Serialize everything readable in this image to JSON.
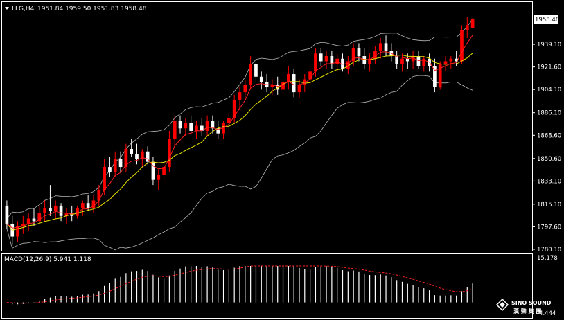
{
  "colors": {
    "background": "#000000",
    "frame": "#ffffff",
    "bull_body": "#ff0000",
    "bear_body": "#ffffff",
    "ma_fast": "#ff2222",
    "ma_slow": "#e8e400",
    "bollinger": "#b8b8b8",
    "histogram": "#ffffff",
    "signal": "#ff2222",
    "price_box_bg": "#ffffff",
    "price_box_text": "#000000"
  },
  "header": {
    "symbol": "LLG,H4",
    "ohlc": "1951.84 1959.50 1951.83 1958.48"
  },
  "macd_header": {
    "label": "MACD(12,26,9) 5.941 1.118"
  },
  "logo": {
    "line1": "SINO SOUND",
    "line2": "漢 聲 集 團"
  },
  "chart_data": [
    {
      "type": "candlestick",
      "series_name": "LLG,H4",
      "ylim": [
        1780.1,
        1958.48
      ],
      "yticks": [
        "1958.48",
        "1939.10",
        "1921.60",
        "1904.10",
        "1886.10",
        "1868.60",
        "1850.60",
        "1833.10",
        "1815.10",
        "1797.60",
        "1780.10"
      ],
      "current_price": "1958.48",
      "ohlc": [
        [
          1814.0,
          1818.0,
          1796.0,
          1800.0
        ],
        [
          1800.0,
          1806.0,
          1784.0,
          1790.0
        ],
        [
          1790.0,
          1802.0,
          1786.0,
          1798.0
        ],
        [
          1798.0,
          1806.0,
          1792.0,
          1800.0
        ],
        [
          1800.0,
          1808.0,
          1794.0,
          1804.0
        ],
        [
          1804.0,
          1812.0,
          1798.0,
          1802.0
        ],
        [
          1802.0,
          1814.0,
          1800.0,
          1808.0
        ],
        [
          1808.0,
          1818.0,
          1802.0,
          1812.0
        ],
        [
          1812.0,
          1830.0,
          1806.0,
          1810.0
        ],
        [
          1810.0,
          1818.0,
          1804.0,
          1814.0
        ],
        [
          1814.0,
          1816.0,
          1802.0,
          1806.0
        ],
        [
          1806.0,
          1812.0,
          1800.0,
          1808.0
        ],
        [
          1808.0,
          1814.0,
          1802.0,
          1806.0
        ],
        [
          1806.0,
          1814.0,
          1804.0,
          1812.0
        ],
        [
          1812.0,
          1818.0,
          1806.0,
          1816.0
        ],
        [
          1816.0,
          1822.0,
          1810.0,
          1812.0
        ],
        [
          1812.0,
          1822.0,
          1808.0,
          1818.0
        ],
        [
          1818.0,
          1830.0,
          1814.0,
          1826.0
        ],
        [
          1826.0,
          1850.0,
          1822.0,
          1844.0
        ],
        [
          1844.0,
          1852.0,
          1836.0,
          1840.0
        ],
        [
          1840.0,
          1856.0,
          1836.0,
          1850.0
        ],
        [
          1850.0,
          1856.0,
          1840.0,
          1844.0
        ],
        [
          1844.0,
          1862.0,
          1840.0,
          1858.0
        ],
        [
          1858.0,
          1866.0,
          1852.0,
          1854.0
        ],
        [
          1854.0,
          1862.0,
          1846.0,
          1850.0
        ],
        [
          1850.0,
          1858.0,
          1844.0,
          1856.0
        ],
        [
          1856.0,
          1860.0,
          1846.0,
          1848.0
        ],
        [
          1848.0,
          1852.0,
          1830.0,
          1834.0
        ],
        [
          1834.0,
          1842.0,
          1826.0,
          1838.0
        ],
        [
          1838.0,
          1848.0,
          1832.0,
          1844.0
        ],
        [
          1844.0,
          1872.0,
          1840.0,
          1866.0
        ],
        [
          1866.0,
          1884.0,
          1860.0,
          1880.0
        ],
        [
          1880.0,
          1884.0,
          1870.0,
          1874.0
        ],
        [
          1874.0,
          1882.0,
          1868.0,
          1878.0
        ],
        [
          1878.0,
          1884.0,
          1870.0,
          1872.0
        ],
        [
          1872.0,
          1880.0,
          1866.0,
          1876.0
        ],
        [
          1876.0,
          1882.0,
          1868.0,
          1872.0
        ],
        [
          1872.0,
          1884.0,
          1868.0,
          1880.0
        ],
        [
          1880.0,
          1884.0,
          1870.0,
          1874.0
        ],
        [
          1874.0,
          1880.0,
          1866.0,
          1870.0
        ],
        [
          1870.0,
          1880.0,
          1866.0,
          1878.0
        ],
        [
          1878.0,
          1886.0,
          1872.0,
          1882.0
        ],
        [
          1882.0,
          1900.0,
          1878.0,
          1896.0
        ],
        [
          1896.0,
          1906.0,
          1888.0,
          1902.0
        ],
        [
          1902.0,
          1912.0,
          1896.0,
          1908.0
        ],
        [
          1908.0,
          1930.0,
          1904.0,
          1924.0
        ],
        [
          1924.0,
          1928.0,
          1910.0,
          1914.0
        ],
        [
          1914.0,
          1918.0,
          1904.0,
          1910.0
        ],
        [
          1910.0,
          1916.0,
          1902.0,
          1906.0
        ],
        [
          1906.0,
          1912.0,
          1900.0,
          1908.0
        ],
        [
          1908.0,
          1914.0,
          1900.0,
          1904.0
        ],
        [
          1904.0,
          1914.0,
          1898.0,
          1910.0
        ],
        [
          1910.0,
          1922.0,
          1904.0,
          1916.0
        ],
        [
          1916.0,
          1920.0,
          1898.0,
          1902.0
        ],
        [
          1902.0,
          1912.0,
          1898.0,
          1908.0
        ],
        [
          1908.0,
          1916.0,
          1902.0,
          1912.0
        ],
        [
          1912.0,
          1922.0,
          1908.0,
          1918.0
        ],
        [
          1918.0,
          1936.0,
          1914.0,
          1932.0
        ],
        [
          1932.0,
          1936.0,
          1922.0,
          1926.0
        ],
        [
          1926.0,
          1934.0,
          1920.0,
          1930.0
        ],
        [
          1930.0,
          1934.0,
          1920.0,
          1924.0
        ],
        [
          1924.0,
          1932.0,
          1918.0,
          1928.0
        ],
        [
          1928.0,
          1932.0,
          1918.0,
          1920.0
        ],
        [
          1920.0,
          1930.0,
          1916.0,
          1926.0
        ],
        [
          1926.0,
          1940.0,
          1922.0,
          1936.0
        ],
        [
          1936.0,
          1940.0,
          1926.0,
          1930.0
        ],
        [
          1930.0,
          1936.0,
          1920.0,
          1924.0
        ],
        [
          1924.0,
          1932.0,
          1918.0,
          1928.0
        ],
        [
          1928.0,
          1938.0,
          1924.0,
          1934.0
        ],
        [
          1934.0,
          1944.0,
          1928.0,
          1940.0
        ],
        [
          1940.0,
          1946.0,
          1930.0,
          1934.0
        ],
        [
          1934.0,
          1940.0,
          1926.0,
          1930.0
        ],
        [
          1930.0,
          1934.0,
          1920.0,
          1924.0
        ],
        [
          1924.0,
          1932.0,
          1918.0,
          1928.0
        ],
        [
          1928.0,
          1932.0,
          1920.0,
          1926.0
        ],
        [
          1926.0,
          1934.0,
          1920.0,
          1930.0
        ],
        [
          1930.0,
          1934.0,
          1920.0,
          1922.0
        ],
        [
          1922.0,
          1930.0,
          1918.0,
          1928.0
        ],
        [
          1928.0,
          1932.0,
          1918.0,
          1922.0
        ],
        [
          1922.0,
          1928.0,
          1902.0,
          1906.0
        ],
        [
          1906.0,
          1926.0,
          1904.0,
          1924.0
        ],
        [
          1924.0,
          1930.0,
          1918.0,
          1926.0
        ],
        [
          1926.0,
          1930.0,
          1920.0,
          1928.0
        ],
        [
          1928.0,
          1934.0,
          1922.0,
          1926.0
        ],
        [
          1926.0,
          1954.0,
          1924.0,
          1950.0
        ],
        [
          1950.0,
          1960.0,
          1944.0,
          1954.0
        ],
        [
          1951.84,
          1959.5,
          1951.83,
          1958.48
        ]
      ]
    },
    {
      "type": "bar",
      "series_name": "MACD(12,26,9)",
      "histogram_value": "5.941",
      "signal_value": "1.118",
      "ylim": [
        -4.444,
        15.178
      ],
      "yticks": [
        "15.178",
        "-4.444"
      ]
    }
  ]
}
